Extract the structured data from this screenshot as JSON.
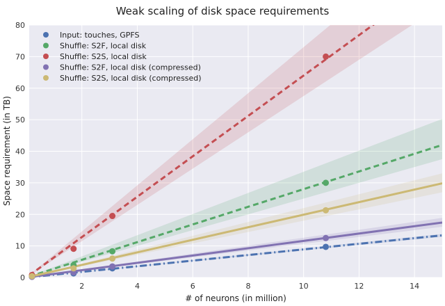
{
  "chart_data": {
    "type": "scatter",
    "title": "Weak scaling of disk space requirements",
    "xlabel": "# of neurons (in million)",
    "ylabel": "Space requirement (in TB)",
    "xlim": [
      0.1,
      15.0
    ],
    "ylim": [
      0,
      80
    ],
    "x_ticks": [
      2,
      4,
      6,
      8,
      10,
      12,
      14
    ],
    "y_ticks": [
      0,
      10,
      20,
      30,
      40,
      50,
      60,
      70,
      80
    ],
    "grid": true,
    "legend_position": "top-left",
    "series": [
      {
        "name": "Input: touches, GPFS",
        "color": "#4c72b0",
        "line_style": "dashdot",
        "x": [
          0.2,
          1.7,
          3.1,
          10.8
        ],
        "y": [
          0.3,
          1.3,
          2.9,
          9.7
        ],
        "fit": {
          "slope": 0.89,
          "intercept": 0.0
        },
        "band": {
          "lower": [
            0.86,
            0.0
          ],
          "upper": [
            0.92,
            0.0
          ]
        }
      },
      {
        "name": "Shuffle: S2F, local disk",
        "color": "#55a868",
        "line_style": "dashed",
        "x": [
          0.2,
          1.7,
          3.1,
          10.8
        ],
        "y": [
          0.5,
          3.9,
          8.3,
          30.0
        ],
        "fit": {
          "slope": 2.8,
          "intercept": 0.0
        },
        "band": {
          "lower": [
            2.5,
            0.0
          ],
          "upper": [
            3.35,
            0.0
          ]
        }
      },
      {
        "name": "Shuffle: S2S, local disk",
        "color": "#c44e52",
        "line_style": "dashed",
        "x": [
          0.2,
          1.7,
          3.1,
          10.8
        ],
        "y": [
          0.8,
          9.1,
          19.5,
          70.0
        ],
        "fit": {
          "slope": 6.4,
          "intercept": 0.0
        },
        "band": {
          "lower": [
            5.75,
            0.0
          ],
          "upper": [
            7.3,
            0.0
          ]
        }
      },
      {
        "name": "Shuffle: S2F, local disk (compressed)",
        "color": "#8172b2",
        "line_style": "solid",
        "x": [
          0.2,
          1.7,
          3.1,
          10.8
        ],
        "y": [
          0.2,
          1.6,
          3.5,
          12.5
        ],
        "fit": {
          "slope": 1.16,
          "intercept": 0.0
        },
        "band": {
          "lower": [
            1.07,
            0.0
          ],
          "upper": [
            1.26,
            0.0
          ]
        }
      },
      {
        "name": "Shuffle: S2S, local disk (compressed)",
        "color": "#ccb974",
        "line_style": "solid",
        "x": [
          0.2,
          1.7,
          3.1,
          10.8
        ],
        "y": [
          0.4,
          2.9,
          6.0,
          21.3
        ],
        "fit": {
          "slope": 1.99,
          "intercept": 0.0
        },
        "band": {
          "lower": [
            1.8,
            0.0
          ],
          "upper": [
            2.2,
            0.0
          ]
        }
      }
    ]
  }
}
